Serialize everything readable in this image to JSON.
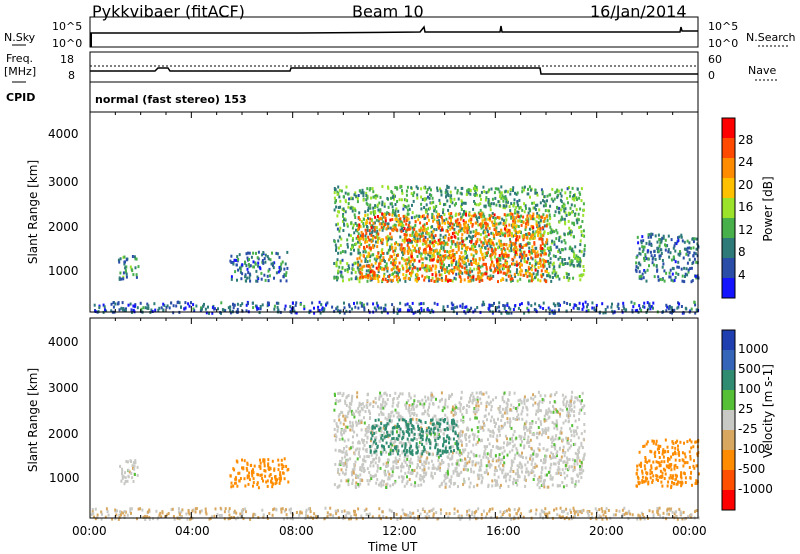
{
  "header": {
    "station": "Pykkvibaer (fitACF)",
    "beam": "Beam 10",
    "date": "16/Jan/2014"
  },
  "status_panels": {
    "nsky_label": "N.Sky",
    "nsearch_label": "N.Search",
    "freq_label": "Freq.",
    "freq_unit": "[MHz]",
    "nave_label": "Nave",
    "cpid_label": "CPID",
    "cpid_text": "normal (fast stereo) 153",
    "noise_ticks": [
      "10^5",
      "10^0"
    ],
    "freq_ticks": [
      "18",
      "8"
    ],
    "nave_ticks": [
      "60",
      "0"
    ]
  },
  "colorbars": {
    "power": {
      "label": "Power [dB]",
      "ticks": [
        "28",
        "24",
        "20",
        "16",
        "12",
        "8",
        "4"
      ],
      "colors": [
        "#ff0000",
        "#ff4a00",
        "#ff8c00",
        "#ffc000",
        "#9be22a",
        "#48b04a",
        "#2e7a78",
        "#2a4ea8",
        "#1414ff"
      ]
    },
    "velocity": {
      "label": "Velocity [m s-1]",
      "ticks": [
        "1000",
        "500",
        "100",
        "25",
        "-25",
        "-100",
        "-500",
        "-1000"
      ],
      "colors": [
        "#1f3fb0",
        "#3565b8",
        "#2f8c70",
        "#55c036",
        "#c8c8c4",
        "#d8a860",
        "#ff8c00",
        "#ff5000",
        "#ff0000"
      ]
    }
  },
  "chart_data": [
    {
      "type": "heatmap",
      "panel": "power",
      "ylabel": "Slant Range [km]",
      "xlabel": "",
      "x_ticks": [
        "00:00",
        "04:00",
        "08:00",
        "12:00",
        "16:00",
        "20:00",
        "00:00"
      ],
      "y_ticks": [
        "1000",
        "2000",
        "3000",
        "4000"
      ],
      "xlim": [
        0,
        24
      ],
      "ylim": [
        200,
        4600
      ],
      "clusters": [
        {
          "t0": 1.1,
          "t1": 1.9,
          "r0": 950,
          "r1": 1500,
          "value": 10
        },
        {
          "t0": 5.5,
          "t1": 7.8,
          "r0": 900,
          "r1": 1550,
          "value": 8
        },
        {
          "t0": 9.6,
          "t1": 19.5,
          "r0": 900,
          "r1": 3000,
          "value": 12
        },
        {
          "t0": 10.5,
          "t1": 18.0,
          "r0": 900,
          "r1": 2400,
          "value": 24
        },
        {
          "t0": 21.5,
          "t1": 24.0,
          "r0": 900,
          "r1": 1950,
          "value": 8
        },
        {
          "t0": 0.0,
          "t1": 24.0,
          "r0": 200,
          "r1": 450,
          "value": 6
        }
      ]
    },
    {
      "type": "heatmap",
      "panel": "velocity",
      "ylabel": "Slant Range [km]",
      "xlabel": "Time UT",
      "x_ticks": [
        "00:00",
        "04:00",
        "08:00",
        "12:00",
        "16:00",
        "20:00",
        "00:00"
      ],
      "y_ticks": [
        "1000",
        "2000",
        "3000",
        "4000"
      ],
      "xlim": [
        0,
        24
      ],
      "ylim": [
        200,
        4600
      ],
      "clusters": [
        {
          "t0": 1.1,
          "t1": 1.9,
          "r0": 950,
          "r1": 1500,
          "value": 0
        },
        {
          "t0": 5.5,
          "t1": 7.8,
          "r0": 900,
          "r1": 1550,
          "value": -200
        },
        {
          "t0": 9.6,
          "t1": 19.5,
          "r0": 900,
          "r1": 3000,
          "value": 0
        },
        {
          "t0": 11.0,
          "t1": 14.5,
          "r0": 1600,
          "r1": 2400,
          "value": 150
        },
        {
          "t0": 21.5,
          "t1": 24.0,
          "r0": 900,
          "r1": 1950,
          "value": -150
        },
        {
          "t0": 0.0,
          "t1": 24.0,
          "r0": 200,
          "r1": 450,
          "value": -30
        }
      ]
    }
  ]
}
